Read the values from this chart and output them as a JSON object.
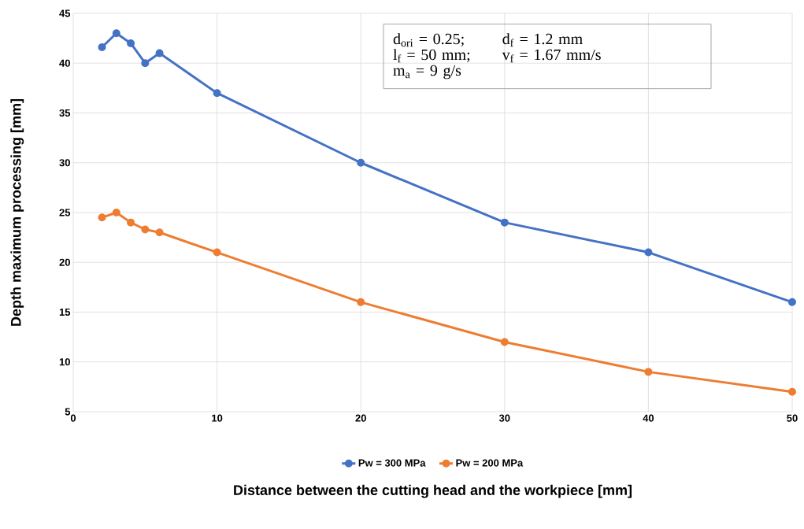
{
  "chart_data": {
    "type": "line",
    "xlabel": "Distance between the cutting head and the workpiece [mm]",
    "ylabel": "Depth maximum processing [mm]",
    "x": [
      2,
      3,
      4,
      5,
      6,
      10,
      20,
      30,
      40,
      50
    ],
    "series": [
      {
        "name": "Pw = 300 MPa",
        "color": "#4472c4",
        "values": [
          41.6,
          43,
          42,
          40,
          41,
          37,
          30,
          24,
          21,
          16
        ]
      },
      {
        "name": "Pw = 200 MPa",
        "color": "#ed7d31",
        "values": [
          24.5,
          25,
          24,
          23.3,
          23,
          21,
          16,
          12,
          9,
          7
        ]
      }
    ],
    "xlim": [
      0,
      50
    ],
    "ylim": [
      5,
      45
    ],
    "xticks": [
      0,
      10,
      20,
      30,
      40,
      50
    ],
    "yticks": [
      5,
      10,
      15,
      20,
      25,
      30,
      35,
      40,
      45
    ],
    "grid": true,
    "legend": "bottom",
    "marker": "circle",
    "line_style": "solid",
    "annotations": [
      "d$_{ori}$ = 0.25;",
      "d$_{f}$ = 1.2 mm",
      "l$_{f}$ = 50 mm;",
      "v$_{f}$ = 1.67 mm/s",
      "m$_{a}$ = 9 g/s"
    ]
  }
}
